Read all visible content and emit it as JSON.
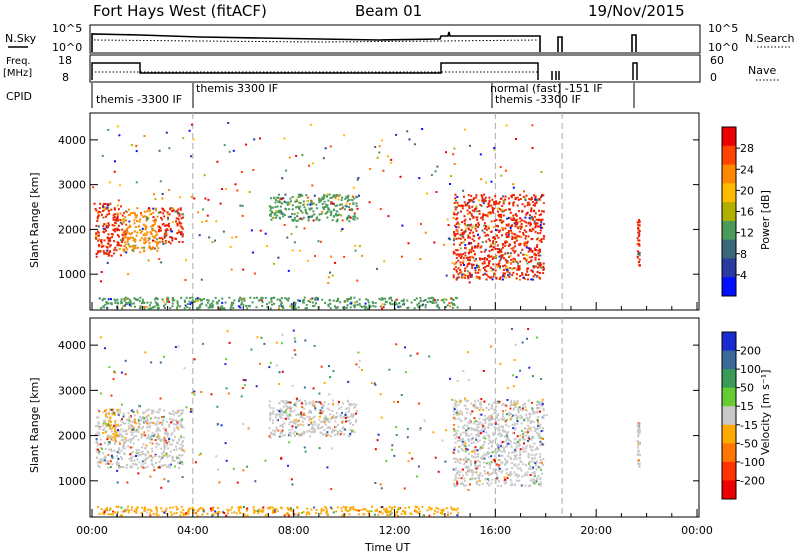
{
  "header": {
    "title": "Fort Hays West (fitACF)",
    "beam": "Beam 01",
    "date": "19/Nov/2015"
  },
  "noise_panel": {
    "left_label": "N.Sky",
    "right_label": "N.Search",
    "left_ticks": [
      "10^5",
      "10^0"
    ],
    "right_ticks": [
      "10^5",
      "10^0"
    ]
  },
  "freq_panel": {
    "left_label_1": "Freq.",
    "left_label_2": "[MHz]",
    "right_label": "Nave",
    "left_ticks": [
      "18",
      "8"
    ],
    "right_ticks": [
      "60",
      "0"
    ]
  },
  "cpid": {
    "label": "CPID",
    "entries": [
      {
        "text": "themis -3300 IF",
        "start_hour": 0.1
      },
      {
        "text": "themis 3300 IF",
        "start_hour": 4.0
      },
      {
        "text": "normal (fast) -151 IF",
        "start_hour": 16.0
      },
      {
        "text": "themis -3300 IF",
        "start_hour": 16.05
      }
    ]
  },
  "colorbars": {
    "power": {
      "label": "Power [dB]",
      "ticks": [
        "28",
        "24",
        "20",
        "16",
        "12",
        "8",
        "4"
      ],
      "colors": [
        "#ee0000",
        "#ff4400",
        "#ff8800",
        "#ffbb00",
        "#b0b000",
        "#4a9a5a",
        "#3a6a7a",
        "#2a3aa0",
        "#0010ff"
      ]
    },
    "velocity": {
      "label": "Velocity [m s⁻¹]",
      "ticks": [
        "200",
        "100",
        "50",
        "15",
        "-15",
        "-50",
        "-100",
        "-200"
      ],
      "colors": [
        "#1a2ad0",
        "#3a6a9a",
        "#3a9a5a",
        "#66cc33",
        "#c8c8c8",
        "#ffaa00",
        "#ff7700",
        "#ff3300",
        "#ee0000"
      ]
    }
  },
  "chart_data": [
    {
      "type": "heatmap",
      "name": "power",
      "ylabel": "Slant Range [km]",
      "ylim": [
        200,
        4600
      ],
      "xlim": [
        0,
        24
      ],
      "yticks": [
        "1000",
        "2000",
        "3000",
        "4000"
      ],
      "regions": [
        {
          "t0": 0.1,
          "t1": 1.2,
          "r0": 1400,
          "r1": 2600,
          "color": "#ee2200"
        },
        {
          "t0": 1.2,
          "t1": 2.6,
          "r0": 1500,
          "r1": 2500,
          "color": "#ff8800"
        },
        {
          "t0": 2.6,
          "t1": 3.6,
          "r0": 1700,
          "r1": 2500,
          "color": "#ee2200"
        },
        {
          "t0": 7.0,
          "t1": 10.5,
          "r0": 2200,
          "r1": 2800,
          "color": "#4a9a5a"
        },
        {
          "t0": 14.3,
          "t1": 17.9,
          "r0": 900,
          "r1": 2800,
          "color": "#ee2200"
        },
        {
          "t0": 0.2,
          "t1": 14.5,
          "r0": 250,
          "r1": 500,
          "color": "#4a9a5a"
        },
        {
          "t0": 21.6,
          "t1": 21.7,
          "r0": 1200,
          "r1": 2300,
          "color": "#ee2200"
        }
      ]
    },
    {
      "type": "heatmap",
      "name": "velocity",
      "ylabel": "Slant Range [km]",
      "xlabel": "Time UT",
      "ylim": [
        200,
        4600
      ],
      "xlim": [
        0,
        24
      ],
      "yticks": [
        "1000",
        "2000",
        "3000",
        "4000"
      ],
      "xticks": [
        "00:00",
        "04:00",
        "08:00",
        "12:00",
        "16:00",
        "20:00",
        "00:00"
      ],
      "regions": [
        {
          "t0": 0.1,
          "t1": 3.6,
          "r0": 1300,
          "r1": 2600,
          "color": "#c8c8c8"
        },
        {
          "t0": 0.5,
          "t1": 1.0,
          "r0": 1900,
          "r1": 2600,
          "color": "#ffaa00"
        },
        {
          "t0": 7.0,
          "t1": 10.5,
          "r0": 2000,
          "r1": 2800,
          "color": "#c8c8c8"
        },
        {
          "t0": 14.3,
          "t1": 17.9,
          "r0": 900,
          "r1": 2800,
          "color": "#c8c8c8"
        },
        {
          "t0": 0.2,
          "t1": 14.5,
          "r0": 250,
          "r1": 450,
          "color": "#ffaa00"
        },
        {
          "t0": 21.6,
          "t1": 21.7,
          "r0": 1300,
          "r1": 2300,
          "color": "#c8c8c8"
        }
      ]
    }
  ]
}
